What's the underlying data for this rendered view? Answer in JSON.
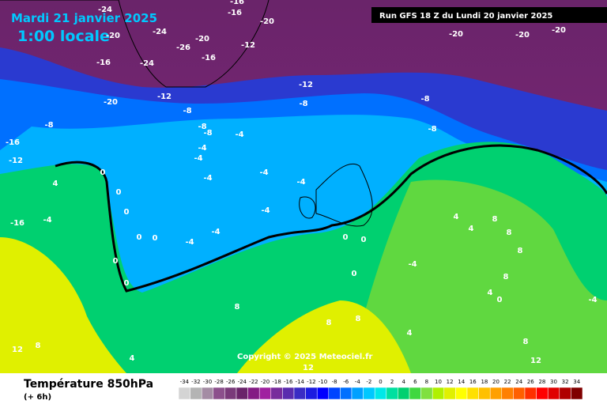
{
  "header": {
    "title": "Mardi 21 janvier 2025",
    "time": "1:00 locale",
    "run": "Run GFS 18 Z du Lundi 20 janvier 2025"
  },
  "copyright": "Copyright © 2025 Meteociel.fr",
  "footer": {
    "title": "Température 850hPa",
    "lead": "(+ 6h)"
  },
  "contour_labels": [
    "-24",
    "-16",
    "-16",
    "-20",
    "-24",
    "-20",
    "-26",
    "-16",
    "-12",
    "-16",
    "-20",
    "-24",
    "-20",
    "-20",
    "-20",
    "-8",
    "-8",
    "-16",
    "-12",
    "-20",
    "-12",
    "-8",
    "-8",
    "-12",
    "-8",
    "-8",
    "-8",
    "-4",
    "-4",
    "-4",
    "-4",
    "-4",
    "-4",
    "-4",
    "-4",
    "-4",
    "-16",
    "-4",
    "0",
    "0",
    "0",
    "0",
    "0",
    "0",
    "0",
    "0",
    "0",
    "4",
    "4",
    "4",
    "8",
    "8",
    "8",
    "8",
    "8",
    "8",
    "12",
    "12",
    "4",
    "8",
    "4",
    "8",
    "-4",
    "-4",
    "4",
    "8",
    "12",
    "0",
    "0"
  ],
  "legend": {
    "labels": [
      "-34",
      "-32",
      "-30",
      "-28",
      "-26",
      "-24",
      "-22",
      "-20",
      "-18",
      "-16",
      "-14",
      "-12",
      "-10",
      "-8",
      "-6",
      "-4",
      "-2",
      "0",
      "2",
      "4",
      "6",
      "8",
      "10",
      "12",
      "14",
      "16",
      "18",
      "20",
      "22",
      "24",
      "26",
      "28",
      "30",
      "32",
      "34"
    ],
    "colors": [
      "#d4d4d4",
      "#b4b4b4",
      "#a48ca4",
      "#8c508c",
      "#7a3a7a",
      "#6a246a",
      "#841c84",
      "#a020a0",
      "#782c9c",
      "#5a2cae",
      "#3a2cc4",
      "#1c1ce0",
      "#0000ff",
      "#0044ff",
      "#0070ff",
      "#00a0ff",
      "#00c8ff",
      "#00e8e8",
      "#00e0a0",
      "#00d070",
      "#40d840",
      "#80e040",
      "#b0f000",
      "#e0f000",
      "#ffff00",
      "#ffe000",
      "#ffc000",
      "#ffa000",
      "#ff8000",
      "#ff6000",
      "#ff3000",
      "#ff0000",
      "#e00000",
      "#b00000",
      "#800000"
    ]
  }
}
